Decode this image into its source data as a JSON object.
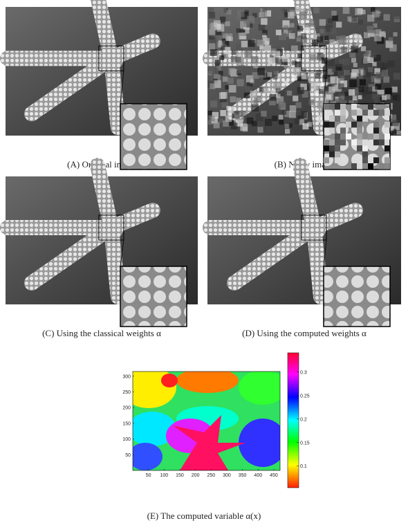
{
  "panels": [
    {
      "caption": "(A) Original image"
    },
    {
      "caption": "(B) Noisy image"
    },
    {
      "caption": "(C) Using the classical weights α"
    },
    {
      "caption": "(D) Using the computed weights α"
    }
  ],
  "heatmap": {
    "caption": "(E) The computed variable α(x)",
    "xlim": [
      0,
      470
    ],
    "ylim": [
      0,
      315
    ],
    "xticks": [
      50,
      100,
      150,
      200,
      250,
      300,
      350,
      400,
      450
    ],
    "yticks": [
      50,
      100,
      150,
      200,
      250,
      300
    ],
    "clim": [
      0.054,
      0.341
    ],
    "cticks": [
      0.1,
      0.15,
      0.2,
      0.25,
      0.3
    ]
  }
}
